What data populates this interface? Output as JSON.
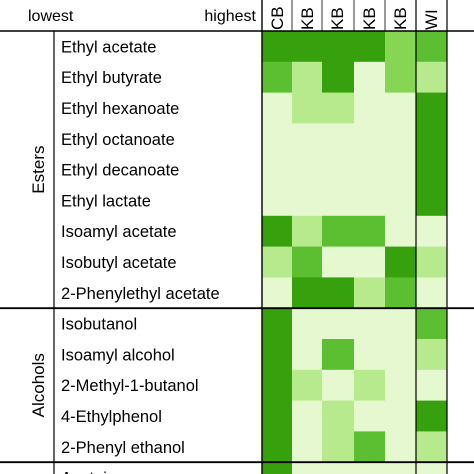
{
  "chart_data": {
    "type": "heatmap",
    "legend": {
      "low_label": "lowest",
      "high_label": "highest"
    },
    "columns": [
      "CB",
      "KB",
      "KB",
      "KB",
      "KB",
      "WI"
    ],
    "groups": [
      {
        "name": "Esters",
        "rows": [
          "Ethyl acetate",
          "Ethyl butyrate",
          "Ethyl hexanoate",
          "Ethyl octanoate",
          "Ethyl decanoate",
          "Ethyl lactate",
          "Isoamyl acetate",
          "Isobutyl acetate",
          "2-Phenylethyl acetate"
        ]
      },
      {
        "name": "Alcohols",
        "rows": [
          "Isobutanol",
          "Isoamyl alcohol",
          "2-Methyl-1-butanol",
          "4-Ethylphenol",
          "2-Phenyl ethanol"
        ]
      },
      {
        "name": "",
        "rows": [
          "Acetoin"
        ]
      }
    ],
    "values": [
      [
        5,
        5,
        5,
        5,
        3,
        4
      ],
      [
        4,
        2,
        5,
        1,
        3,
        2
      ],
      [
        1,
        2,
        2,
        1,
        1,
        5
      ],
      [
        1,
        1,
        1,
        1,
        1,
        5
      ],
      [
        1,
        1,
        1,
        1,
        1,
        5
      ],
      [
        1,
        1,
        1,
        1,
        1,
        5
      ],
      [
        5,
        2,
        4,
        4,
        1,
        1
      ],
      [
        2,
        4,
        1,
        1,
        5,
        2
      ],
      [
        1,
        5,
        5,
        2,
        4,
        1
      ],
      [
        5,
        1,
        1,
        1,
        1,
        4
      ],
      [
        5,
        1,
        4,
        1,
        1,
        2
      ],
      [
        5,
        2,
        1,
        2,
        1,
        1
      ],
      [
        5,
        1,
        2,
        1,
        1,
        5
      ],
      [
        5,
        1,
        2,
        4,
        1,
        2
      ],
      [
        5,
        1,
        1,
        1,
        1,
        1
      ]
    ],
    "color_scale": [
      "#e5f8cf",
      "#b6ea8c",
      "#86d654",
      "#5bbf31",
      "#36a10c"
    ]
  }
}
